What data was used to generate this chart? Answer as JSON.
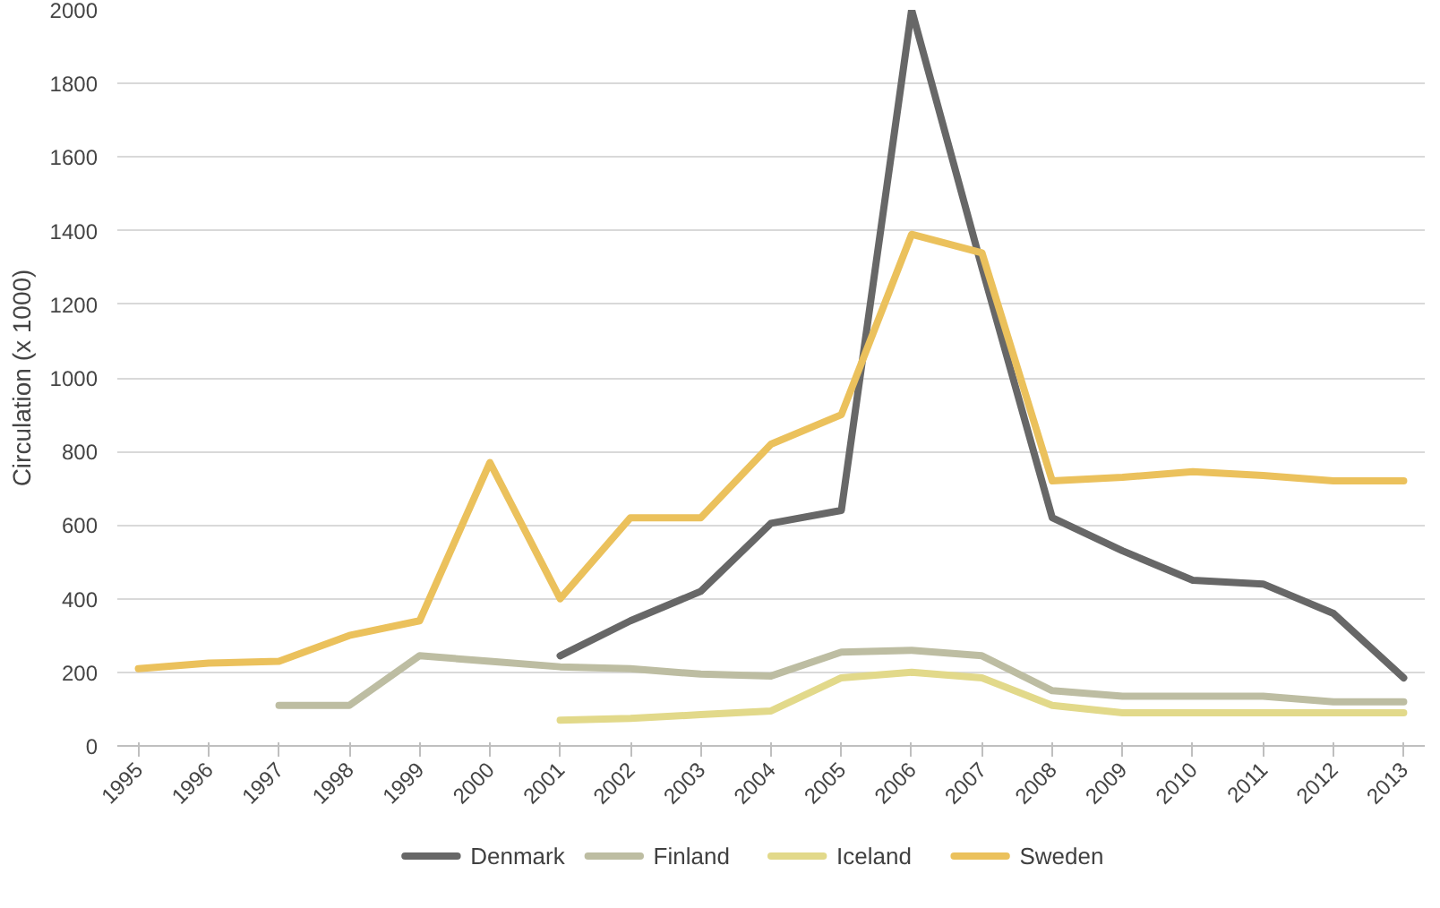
{
  "chart_data": {
    "type": "line",
    "ylabel": "Circulation (x 1000)",
    "categories": [
      "1995",
      "1996",
      "1997",
      "1998",
      "1999",
      "2000",
      "2001",
      "2002",
      "2003",
      "2004",
      "2005",
      "2006",
      "2007",
      "2008",
      "2009",
      "2010",
      "2011",
      "2012",
      "2013"
    ],
    "series": [
      {
        "name": "Denmark",
        "color": "#676767",
        "values": [
          null,
          null,
          null,
          null,
          null,
          null,
          245,
          340,
          420,
          605,
          640,
          2000,
          1300,
          620,
          530,
          450,
          440,
          360,
          185
        ]
      },
      {
        "name": "Finland",
        "color": "#bdbda2",
        "values": [
          null,
          null,
          110,
          110,
          245,
          230,
          215,
          210,
          195,
          190,
          255,
          260,
          245,
          150,
          135,
          135,
          135,
          120,
          120
        ]
      },
      {
        "name": "Iceland",
        "color": "#e2d98a",
        "values": [
          null,
          null,
          null,
          null,
          null,
          null,
          70,
          75,
          85,
          95,
          185,
          200,
          185,
          110,
          90,
          90,
          90,
          90,
          90
        ]
      },
      {
        "name": "Sweden",
        "color": "#ebc15c",
        "values": [
          210,
          225,
          230,
          300,
          340,
          770,
          400,
          620,
          620,
          820,
          900,
          1390,
          1340,
          720,
          730,
          745,
          735,
          720,
          720
        ]
      }
    ],
    "ylim": [
      0,
      2000
    ],
    "yticks": [
      0,
      200,
      400,
      600,
      800,
      1000,
      1200,
      1400,
      1600,
      1800,
      2000
    ],
    "grid": "y",
    "legend": "bottom",
    "line_style": "solid",
    "marker": "none"
  }
}
